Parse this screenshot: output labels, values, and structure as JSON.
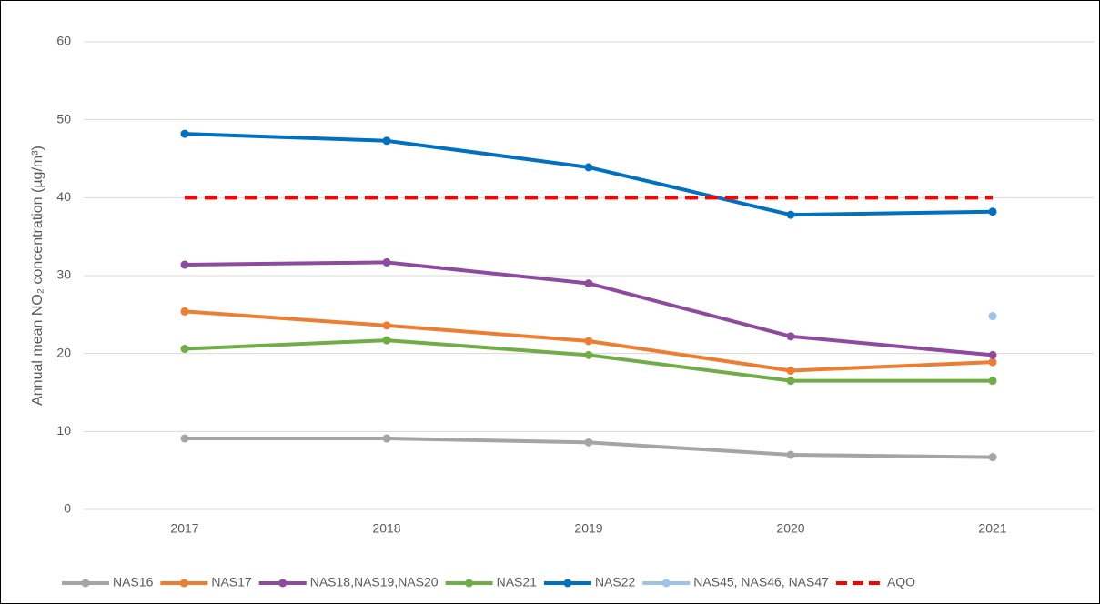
{
  "chart_data": {
    "type": "line",
    "y_label": "Annual mean NO₂ concentration (µg/m³)",
    "categories": [
      "2017",
      "2018",
      "2019",
      "2020",
      "2021"
    ],
    "series": [
      {
        "name": "NAS16",
        "color": "#a5a5a5",
        "values": [
          9.1,
          9.1,
          8.6,
          7.0,
          6.7
        ]
      },
      {
        "name": "NAS17",
        "color": "#ed7d31",
        "values": [
          25.4,
          23.6,
          21.6,
          17.8,
          18.9
        ]
      },
      {
        "name": "NAS18,NAS19,NAS20",
        "color": "#8e4a9e",
        "values": [
          31.4,
          31.7,
          29.0,
          22.2,
          19.8
        ]
      },
      {
        "name": "NAS21",
        "color": "#70ad47",
        "values": [
          20.6,
          21.7,
          19.8,
          16.5,
          16.5
        ]
      },
      {
        "name": "NAS22",
        "color": "#0070c0",
        "values": [
          48.2,
          47.3,
          43.9,
          37.8,
          38.2
        ]
      },
      {
        "name": "NAS45, NAS46, NAS47",
        "color": "#9dc3e6",
        "values": [
          null,
          null,
          null,
          null,
          24.8
        ]
      },
      {
        "name": "AQO",
        "color": "#ff0000",
        "dashed": true,
        "markers": false,
        "values": [
          40,
          40,
          40,
          40,
          40
        ]
      }
    ],
    "ylim": [
      0,
      60
    ],
    "yticks": [
      0,
      10,
      20,
      30,
      40,
      50,
      60
    ],
    "grid": true,
    "legend": "bottom"
  }
}
